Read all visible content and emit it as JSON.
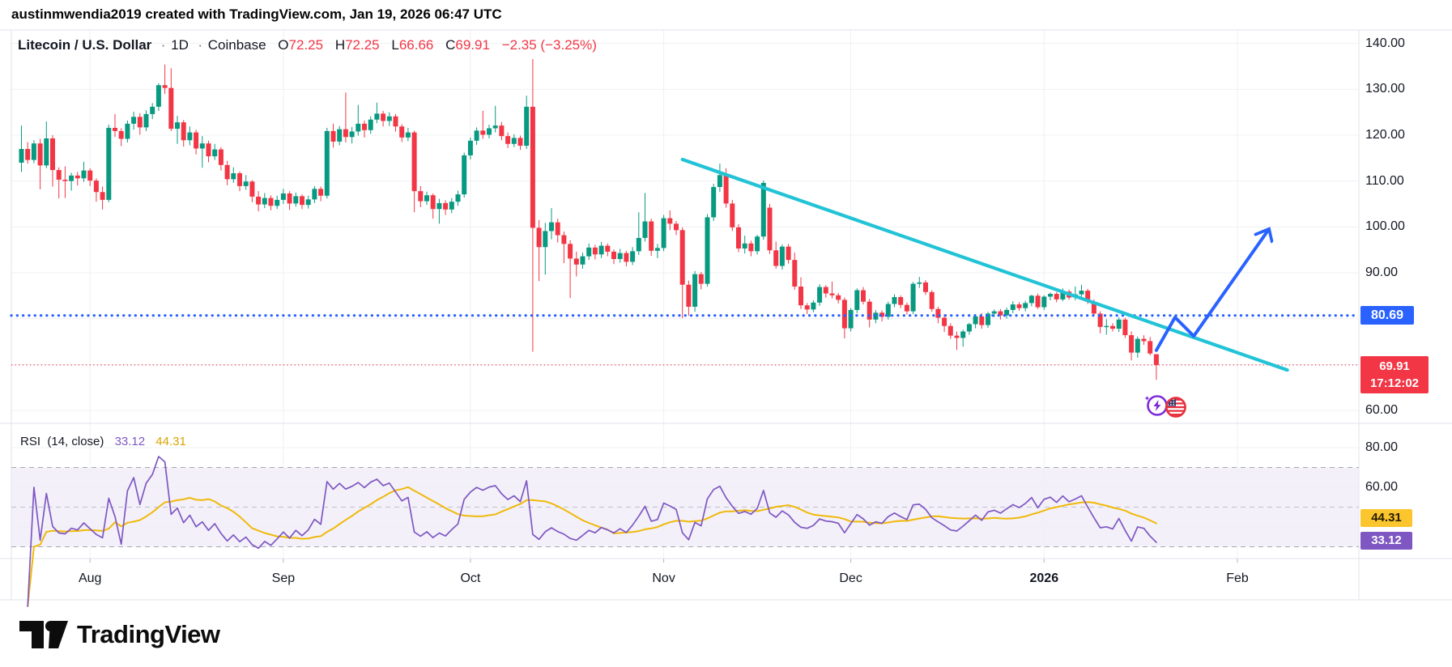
{
  "watermark": "austinmwendia2019 created with TradingView.com, Jan 19, 2026 06:47 UTC",
  "header": {
    "symbol": "Litecoin / U.S. Dollar",
    "interval": "1D",
    "exchange": "Coinbase",
    "o_label": "O",
    "o": "72.25",
    "h_label": "H",
    "h": "72.25",
    "l_label": "L",
    "l": "66.66",
    "c_label": "C",
    "c": "69.91",
    "change": "−2.35 (−3.25%)"
  },
  "price_axis": {
    "ticks": [
      {
        "label": "140.00",
        "value": 140
      },
      {
        "label": "130.00",
        "value": 130
      },
      {
        "label": "120.00",
        "value": 120
      },
      {
        "label": "110.00",
        "value": 110
      },
      {
        "label": "100.00",
        "value": 100
      },
      {
        "label": "90.00",
        "value": 90
      },
      {
        "label": "60.00",
        "value": 60
      }
    ],
    "level_badge": {
      "label": "80.69",
      "value": 80.69
    },
    "last_badge": {
      "price": "69.91",
      "countdown": "17:12:02",
      "value": 69.91
    }
  },
  "rsi_axis": {
    "ticks": [
      {
        "label": "80.00",
        "value": 80
      },
      {
        "label": "60.00",
        "value": 60
      }
    ],
    "ma_badge": {
      "label": "44.31",
      "value": 44.31
    },
    "rsi_badge": {
      "label": "33.12",
      "value": 33.12
    }
  },
  "rsi_panel": {
    "title": "RSI",
    "params": "(14, close)",
    "rsi_value": "33.12",
    "ma_value": "44.31"
  },
  "time_axis": {
    "month_ticks": [
      {
        "label": "Aug",
        "index": 11
      },
      {
        "label": "Sep",
        "index": 42
      },
      {
        "label": "Oct",
        "index": 72
      },
      {
        "label": "Nov",
        "index": 103
      },
      {
        "label": "Dec",
        "index": 133
      },
      {
        "label": "2026",
        "index": 164
      },
      {
        "label": "Feb",
        "index": 195
      }
    ]
  },
  "logo": {
    "text": "TradingView"
  },
  "colors": {
    "up": "#089981",
    "down": "#F23645",
    "blue": "#2962FF",
    "cyan": "#22C3D6",
    "rsi_line": "#7E57C2",
    "rsi_ma_line": "#F0B90B",
    "rsi_ma_badge": "#FBC52D",
    "rsi_badge": "#7E57C2",
    "grid": "#EFF0F3",
    "border": "#E0E3EB",
    "band_fill": "rgba(126,87,194,0.09)",
    "dash_line": "#A5A8B1",
    "mid_line": "#BDC0C9"
  },
  "chart_data": {
    "type": "candlestick",
    "title": "Litecoin / U.S. Dollar · 1D · Coinbase",
    "symbol": "LTCUSD",
    "interval": "1D",
    "start_date": "2025-07-21",
    "end_date": "2026-01-19",
    "price_ylim": [
      57,
      143
    ],
    "grid": true,
    "last": {
      "o": 72.25,
      "h": 72.25,
      "l": 66.66,
      "c": 69.91,
      "change": -2.35,
      "change_pct": -3.25
    },
    "levels": {
      "blue_dotted": 80.69,
      "red_dotted": 69.91
    },
    "candles": [
      [
        114.0,
        122.1,
        112.0,
        117.0
      ],
      [
        117.0,
        118.5,
        113.8,
        114.6
      ],
      [
        114.6,
        118.9,
        113.9,
        118.2
      ],
      [
        118.2,
        119.2,
        108.2,
        113.4
      ],
      [
        113.4,
        123.0,
        112.8,
        119.3
      ],
      [
        119.3,
        120.0,
        108.8,
        112.4
      ],
      [
        112.4,
        113.0,
        106.2,
        110.3
      ],
      [
        110.3,
        113.2,
        106.3,
        110.0
      ],
      [
        110.0,
        111.8,
        107.9,
        111.2
      ],
      [
        111.2,
        112.0,
        109.0,
        110.6
      ],
      [
        110.6,
        114.2,
        109.8,
        112.3
      ],
      [
        112.3,
        112.8,
        108.9,
        110.1
      ],
      [
        110.1,
        110.6,
        105.5,
        107.6
      ],
      [
        107.6,
        108.8,
        103.8,
        105.9
      ],
      [
        105.9,
        122.3,
        105.4,
        121.6
      ],
      [
        121.6,
        124.6,
        119.6,
        120.9
      ],
      [
        120.9,
        121.5,
        117.6,
        119.2
      ],
      [
        119.2,
        123.2,
        118.4,
        122.5
      ],
      [
        122.5,
        125.1,
        121.2,
        124.0
      ],
      [
        124.0,
        124.8,
        120.1,
        121.7
      ],
      [
        121.7,
        125.4,
        120.9,
        124.6
      ],
      [
        124.6,
        127.0,
        123.5,
        126.2
      ],
      [
        126.2,
        131.3,
        125.3,
        130.9
      ],
      [
        130.9,
        135.4,
        129.0,
        130.3
      ],
      [
        130.3,
        134.6,
        120.9,
        121.4
      ],
      [
        121.4,
        124.2,
        118.1,
        122.8
      ],
      [
        122.8,
        123.3,
        117.5,
        118.9
      ],
      [
        118.9,
        121.9,
        117.8,
        120.6
      ],
      [
        120.6,
        121.2,
        115.8,
        117.1
      ],
      [
        117.1,
        119.8,
        112.9,
        118.2
      ],
      [
        118.2,
        118.8,
        114.1,
        115.4
      ],
      [
        115.4,
        118.1,
        114.6,
        116.9
      ],
      [
        116.9,
        117.4,
        112.3,
        113.5
      ],
      [
        113.5,
        114.4,
        109.1,
        110.4
      ],
      [
        110.4,
        113.0,
        109.6,
        111.7
      ],
      [
        111.7,
        112.1,
        107.8,
        108.9
      ],
      [
        108.9,
        111.3,
        108.1,
        109.9
      ],
      [
        109.9,
        110.2,
        105.4,
        106.6
      ],
      [
        106.6,
        107.8,
        103.4,
        104.9
      ],
      [
        104.9,
        107.4,
        104.1,
        106.3
      ],
      [
        106.3,
        106.9,
        103.6,
        104.6
      ],
      [
        104.6,
        106.8,
        103.9,
        105.9
      ],
      [
        105.9,
        108.3,
        105.0,
        107.3
      ],
      [
        107.3,
        107.8,
        103.7,
        105.1
      ],
      [
        105.1,
        107.5,
        104.4,
        106.7
      ],
      [
        106.7,
        107.1,
        103.9,
        104.8
      ],
      [
        104.8,
        106.8,
        104.0,
        106.0
      ],
      [
        106.0,
        108.9,
        105.2,
        108.3
      ],
      [
        108.3,
        108.8,
        105.6,
        106.8
      ],
      [
        106.8,
        121.6,
        106.2,
        120.9
      ],
      [
        120.9,
        122.5,
        117.3,
        118.6
      ],
      [
        118.6,
        122.0,
        117.8,
        121.3
      ],
      [
        121.3,
        129.3,
        118.4,
        119.6
      ],
      [
        119.6,
        121.8,
        118.2,
        120.8
      ],
      [
        120.8,
        126.6,
        119.9,
        122.5
      ],
      [
        122.5,
        123.2,
        119.5,
        121.1
      ],
      [
        121.1,
        124.1,
        120.3,
        123.4
      ],
      [
        123.4,
        127.1,
        122.6,
        124.7
      ],
      [
        124.7,
        125.3,
        121.9,
        123.1
      ],
      [
        123.1,
        125.0,
        122.0,
        124.1
      ],
      [
        124.1,
        124.6,
        120.8,
        121.9
      ],
      [
        121.9,
        122.4,
        118.5,
        119.5
      ],
      [
        119.5,
        121.6,
        118.7,
        120.6
      ],
      [
        120.6,
        121.0,
        103.2,
        107.8
      ],
      [
        107.8,
        108.9,
        104.3,
        105.6
      ],
      [
        105.6,
        107.7,
        104.8,
        106.9
      ],
      [
        106.9,
        107.3,
        101.8,
        103.9
      ],
      [
        103.9,
        106.1,
        100.7,
        105.2
      ],
      [
        105.2,
        105.8,
        102.6,
        103.8
      ],
      [
        103.8,
        106.3,
        103.0,
        105.5
      ],
      [
        105.5,
        107.9,
        104.6,
        107.1
      ],
      [
        107.1,
        116.2,
        106.4,
        115.6
      ],
      [
        115.6,
        119.5,
        114.7,
        118.8
      ],
      [
        118.8,
        121.7,
        117.9,
        121.0
      ],
      [
        121.0,
        125.3,
        119.2,
        120.1
      ],
      [
        120.1,
        122.3,
        119.3,
        121.5
      ],
      [
        121.5,
        126.4,
        120.6,
        122.1
      ],
      [
        122.1,
        122.9,
        118.9,
        119.8
      ],
      [
        119.8,
        120.6,
        117.2,
        118.1
      ],
      [
        118.1,
        120.2,
        117.4,
        119.4
      ],
      [
        119.4,
        119.9,
        116.8,
        117.7
      ],
      [
        117.7,
        128.6,
        117.0,
        126.2
      ],
      [
        126.2,
        136.6,
        72.8,
        99.8
      ],
      [
        99.8,
        101.5,
        88.2,
        95.6
      ],
      [
        95.6,
        100.9,
        89.6,
        99.1
      ],
      [
        99.1,
        104.1,
        97.3,
        101.0
      ],
      [
        101.0,
        101.8,
        96.6,
        98.2
      ],
      [
        98.2,
        99.0,
        92.1,
        96.3
      ],
      [
        96.3,
        97.1,
        84.5,
        93.1
      ],
      [
        93.1,
        94.6,
        89.2,
        91.8
      ],
      [
        91.8,
        94.4,
        90.9,
        93.6
      ],
      [
        93.6,
        96.4,
        92.8,
        95.5
      ],
      [
        95.5,
        96.1,
        92.9,
        94.0
      ],
      [
        94.0,
        96.7,
        93.2,
        95.9
      ],
      [
        95.9,
        96.4,
        93.6,
        94.6
      ],
      [
        94.6,
        95.1,
        91.9,
        93.0
      ],
      [
        93.0,
        95.2,
        92.2,
        94.3
      ],
      [
        94.3,
        94.8,
        91.4,
        92.4
      ],
      [
        92.4,
        95.6,
        91.7,
        94.7
      ],
      [
        94.7,
        103.2,
        93.9,
        97.6
      ],
      [
        97.6,
        107.4,
        96.8,
        101.2
      ],
      [
        101.2,
        101.8,
        93.7,
        94.8
      ],
      [
        94.8,
        96.3,
        93.2,
        95.4
      ],
      [
        95.4,
        102.6,
        94.7,
        101.9
      ],
      [
        101.9,
        103.6,
        99.3,
        100.7
      ],
      [
        100.7,
        101.3,
        98.2,
        99.3
      ],
      [
        99.3,
        99.9,
        80.1,
        87.4
      ],
      [
        87.4,
        88.3,
        80.6,
        82.6
      ],
      [
        82.6,
        90.4,
        81.5,
        89.7
      ],
      [
        89.7,
        90.2,
        86.4,
        87.6
      ],
      [
        87.6,
        102.8,
        87.0,
        102.1
      ],
      [
        102.1,
        109.4,
        101.3,
        108.7
      ],
      [
        108.7,
        113.8,
        107.6,
        111.3
      ],
      [
        111.3,
        112.8,
        104.2,
        105.1
      ],
      [
        105.1,
        105.9,
        99.1,
        99.9
      ],
      [
        99.9,
        100.6,
        94.5,
        95.3
      ],
      [
        95.3,
        98.1,
        94.2,
        96.4
      ],
      [
        96.4,
        97.0,
        93.6,
        94.7
      ],
      [
        94.7,
        98.3,
        94.0,
        97.9
      ],
      [
        97.9,
        110.1,
        97.2,
        109.6
      ],
      [
        104.2,
        105.0,
        94.1,
        94.9
      ],
      [
        94.9,
        96.8,
        90.9,
        91.5
      ],
      [
        91.5,
        96.2,
        90.7,
        95.7
      ],
      [
        95.7,
        96.3,
        92.0,
        92.8
      ],
      [
        92.8,
        94.4,
        86.3,
        87.0
      ],
      [
        87.0,
        89.0,
        82.1,
        82.9
      ],
      [
        82.9,
        83.4,
        81.0,
        82.0
      ],
      [
        82.0,
        84.0,
        81.4,
        83.5
      ],
      [
        83.5,
        87.5,
        82.8,
        86.9
      ],
      [
        86.9,
        87.3,
        84.6,
        85.5
      ],
      [
        85.5,
        88.1,
        84.4,
        85.1
      ],
      [
        85.1,
        85.6,
        83.3,
        84.1
      ],
      [
        84.1,
        84.6,
        75.7,
        77.9
      ],
      [
        77.9,
        82.3,
        77.2,
        81.9
      ],
      [
        81.9,
        86.6,
        81.2,
        86.2
      ],
      [
        86.2,
        86.9,
        83.1,
        83.7
      ],
      [
        83.7,
        84.3,
        78.1,
        79.8
      ],
      [
        79.8,
        81.9,
        79.0,
        81.3
      ],
      [
        81.3,
        81.8,
        79.4,
        80.4
      ],
      [
        80.4,
        83.7,
        79.8,
        83.2
      ],
      [
        83.2,
        85.3,
        82.5,
        84.7
      ],
      [
        84.7,
        85.1,
        82.3,
        83.0
      ],
      [
        83.0,
        83.5,
        80.9,
        81.6
      ],
      [
        81.6,
        88.0,
        81.0,
        87.6
      ],
      [
        87.6,
        89.1,
        86.7,
        87.9
      ],
      [
        87.9,
        88.4,
        85.2,
        85.8
      ],
      [
        85.8,
        86.2,
        81.5,
        82.1
      ],
      [
        82.1,
        82.6,
        79.0,
        80.2
      ],
      [
        80.2,
        81.0,
        77.1,
        78.4
      ],
      [
        78.4,
        79.0,
        75.6,
        76.3
      ],
      [
        76.3,
        77.2,
        73.2,
        75.8
      ],
      [
        75.8,
        77.6,
        73.9,
        77.2
      ],
      [
        77.2,
        79.1,
        76.5,
        78.8
      ],
      [
        78.8,
        81.0,
        77.9,
        80.5
      ],
      [
        80.5,
        81.2,
        77.8,
        78.6
      ],
      [
        78.6,
        81.5,
        78.0,
        81.1
      ],
      [
        81.1,
        82.0,
        80.3,
        81.6
      ],
      [
        81.6,
        82.1,
        79.8,
        80.7
      ],
      [
        80.7,
        82.4,
        80.0,
        81.9
      ],
      [
        81.9,
        83.8,
        81.2,
        83.1
      ],
      [
        83.1,
        83.6,
        81.7,
        82.3
      ],
      [
        82.3,
        83.9,
        81.6,
        83.4
      ],
      [
        83.4,
        85.2,
        82.7,
        85.0
      ],
      [
        85.0,
        85.5,
        82.1,
        82.5
      ],
      [
        82.5,
        85.1,
        81.9,
        84.8
      ],
      [
        84.8,
        85.7,
        84.0,
        85.4
      ],
      [
        85.4,
        85.8,
        83.6,
        84.2
      ],
      [
        84.2,
        86.6,
        83.8,
        85.9
      ],
      [
        85.9,
        86.3,
        84.1,
        84.6
      ],
      [
        84.6,
        87.0,
        84.0,
        85.3
      ],
      [
        85.3,
        87.4,
        84.7,
        86.1
      ],
      [
        86.1,
        86.5,
        83.2,
        83.7
      ],
      [
        83.7,
        84.2,
        80.6,
        81.1
      ],
      [
        81.1,
        81.6,
        76.8,
        78.2
      ],
      [
        78.2,
        79.9,
        76.5,
        78.4
      ],
      [
        78.4,
        79.0,
        77.2,
        77.8
      ],
      [
        77.8,
        80.3,
        77.1,
        79.8
      ],
      [
        79.8,
        80.2,
        75.8,
        76.4
      ],
      [
        76.4,
        77.2,
        70.9,
        72.6
      ],
      [
        72.6,
        76.1,
        71.5,
        75.6
      ],
      [
        75.6,
        76.4,
        74.3,
        75.1
      ],
      [
        75.1,
        76.0,
        72.0,
        72.4
      ],
      [
        72.25,
        72.25,
        66.66,
        69.91
      ]
    ],
    "rsi": {
      "type": "line",
      "period": 14,
      "ma_period": 14,
      "last_rsi": 33.12,
      "last_ma": 44.31,
      "band": [
        30,
        70
      ],
      "midline": 50,
      "shown_ticks": [
        80,
        60,
        40
      ]
    },
    "drawings": {
      "trendline": {
        "type": "cyan-descending",
        "from": {
          "index": 106,
          "price": 114.7
        },
        "to": {
          "index": 203,
          "price": 68.8
        }
      },
      "arrow": {
        "type": "blue-projection",
        "points": [
          {
            "index": 182,
            "price": 73.1
          },
          {
            "index": 185,
            "price": 80.3
          },
          {
            "index": 188,
            "price": 76.2
          },
          {
            "index": 200,
            "price": 99.4
          }
        ]
      }
    }
  }
}
